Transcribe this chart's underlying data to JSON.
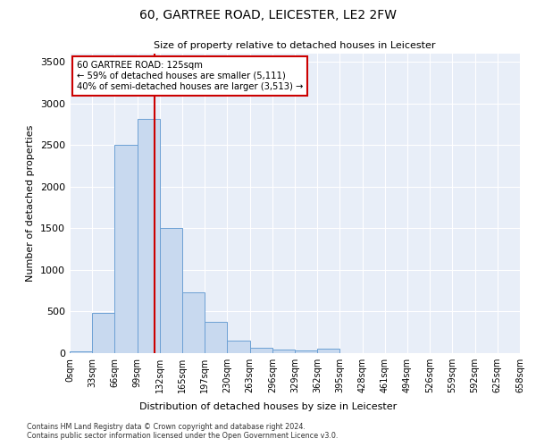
{
  "title": "60, GARTREE ROAD, LEICESTER, LE2 2FW",
  "subtitle": "Size of property relative to detached houses in Leicester",
  "xlabel": "Distribution of detached houses by size in Leicester",
  "ylabel": "Number of detached properties",
  "bar_values": [
    20,
    480,
    2500,
    2820,
    1500,
    730,
    380,
    155,
    65,
    45,
    30,
    50,
    5,
    5,
    3,
    2,
    2,
    1,
    1,
    0
  ],
  "bar_color": "#c8d9ef",
  "bar_edge_color": "#6ca0d4",
  "property_size_bin": 3.78,
  "vline_color": "#cc0000",
  "annotation_text": "60 GARTREE ROAD: 125sqm\n← 59% of detached houses are smaller (5,111)\n40% of semi-detached houses are larger (3,513) →",
  "annotation_box_color": "#ffffff",
  "annotation_box_edge": "#cc0000",
  "ylim": [
    0,
    3600
  ],
  "yticks": [
    0,
    500,
    1000,
    1500,
    2000,
    2500,
    3000,
    3500
  ],
  "footer_line1": "Contains HM Land Registry data © Crown copyright and database right 2024.",
  "footer_line2": "Contains public sector information licensed under the Open Government Licence v3.0.",
  "bg_color": "#e8eef8",
  "x_tick_labels": [
    "0sqm",
    "33sqm",
    "66sqm",
    "99sqm",
    "132sqm",
    "165sqm",
    "197sqm",
    "230sqm",
    "263sqm",
    "296sqm",
    "329sqm",
    "362sqm",
    "395sqm",
    "428sqm",
    "461sqm",
    "494sqm",
    "526sqm",
    "559sqm",
    "592sqm",
    "625sqm",
    "658sqm"
  ],
  "title_fontsize": 10,
  "subtitle_fontsize": 8,
  "ylabel_fontsize": 8,
  "xlabel_fontsize": 8,
  "ytick_fontsize": 8,
  "xtick_fontsize": 7
}
